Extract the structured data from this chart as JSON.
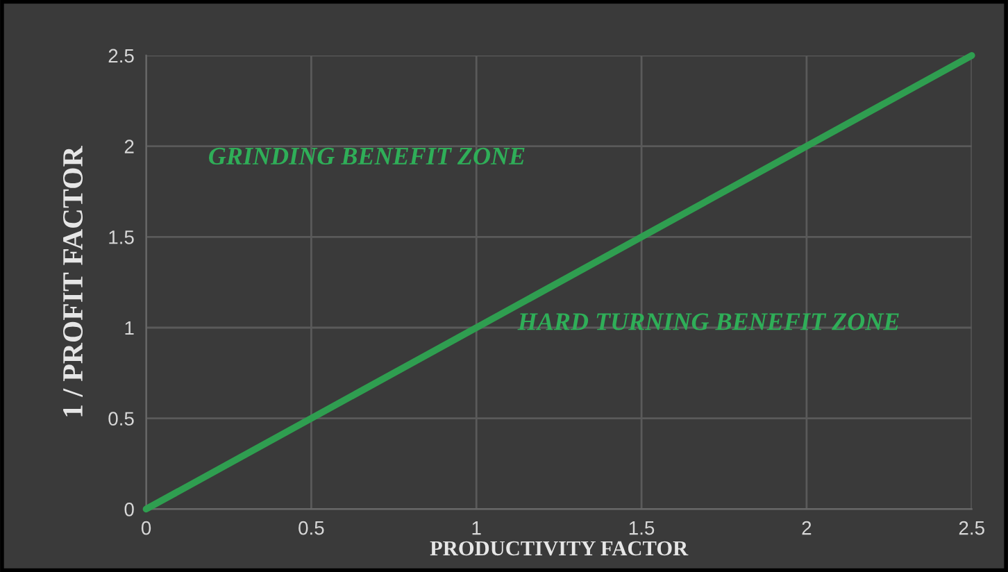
{
  "chart_data": {
    "type": "line",
    "xlabel": "PRODUCTIVITY FACTOR",
    "ylabel": "1 / PROFIT FACTOR",
    "x": [
      0,
      2.5
    ],
    "series": [
      {
        "color": "#2f9e50",
        "values": [
          0,
          2.5
        ]
      }
    ],
    "xlim": [
      0,
      2.5
    ],
    "ylim": [
      0,
      2.5
    ],
    "xticks": [
      0,
      0.5,
      1,
      1.5,
      2,
      2.5
    ],
    "yticks": [
      0,
      0.5,
      1,
      1.5,
      2,
      2.5
    ],
    "grid": true,
    "marker": "none",
    "line_style": "solid",
    "annotations": [
      "GRINDING BENEFIT ZONE",
      "HARD TURNING BENEFIT ZONE"
    ]
  }
}
